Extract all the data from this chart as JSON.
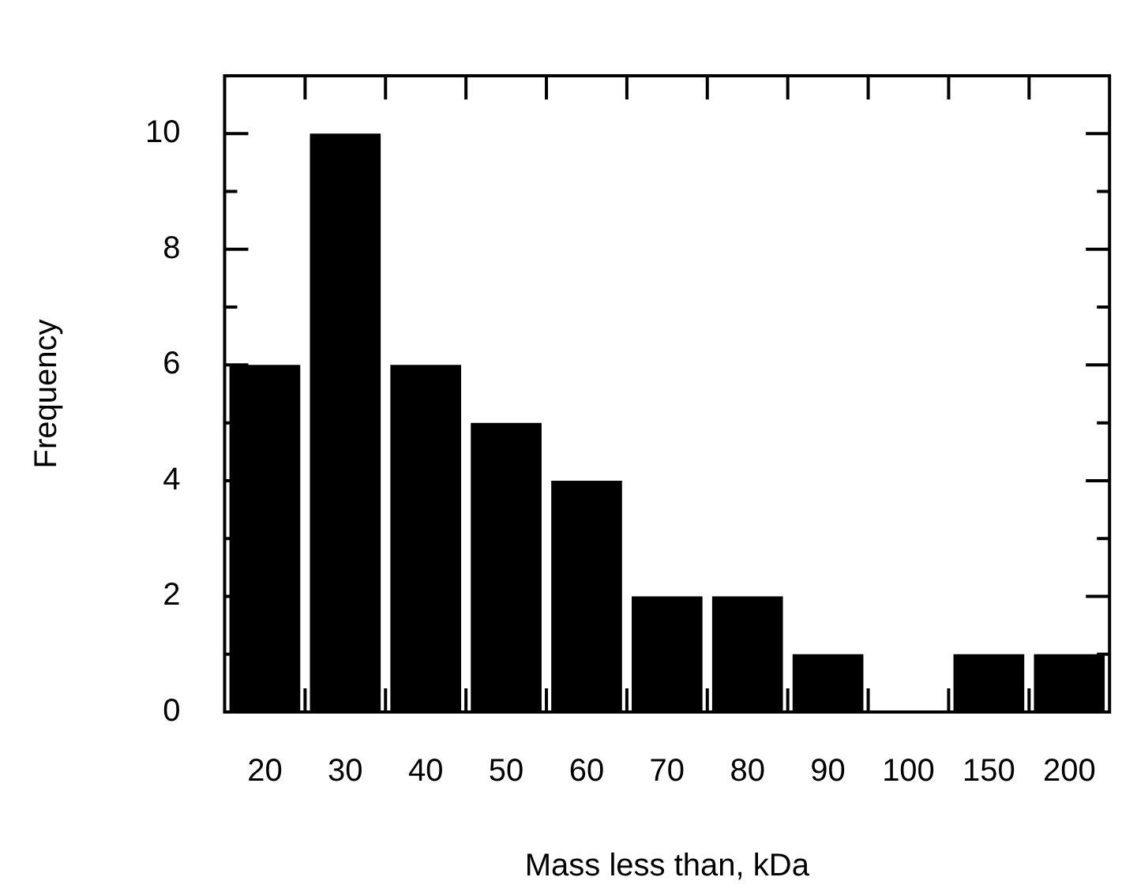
{
  "chart_data": {
    "type": "bar",
    "xlabel": "Mass less than, kDa",
    "ylabel": "Frequency",
    "categories": [
      "20",
      "30",
      "40",
      "50",
      "60",
      "70",
      "80",
      "90",
      "100",
      "150",
      "200"
    ],
    "values": [
      6,
      10,
      6,
      5,
      4,
      2,
      2,
      1,
      0,
      1,
      1
    ],
    "color": "#000000",
    "ylim": [
      0,
      11
    ],
    "yticks": [
      0,
      {
        "value": 1,
        "label": null
      },
      2,
      {
        "value": 3,
        "label": null
      },
      4,
      {
        "value": 5,
        "label": null
      },
      6,
      {
        "value": 7,
        "label": null
      },
      8,
      {
        "value": 9,
        "label": null
      },
      10
    ],
    "grid": false,
    "legend": false
  }
}
